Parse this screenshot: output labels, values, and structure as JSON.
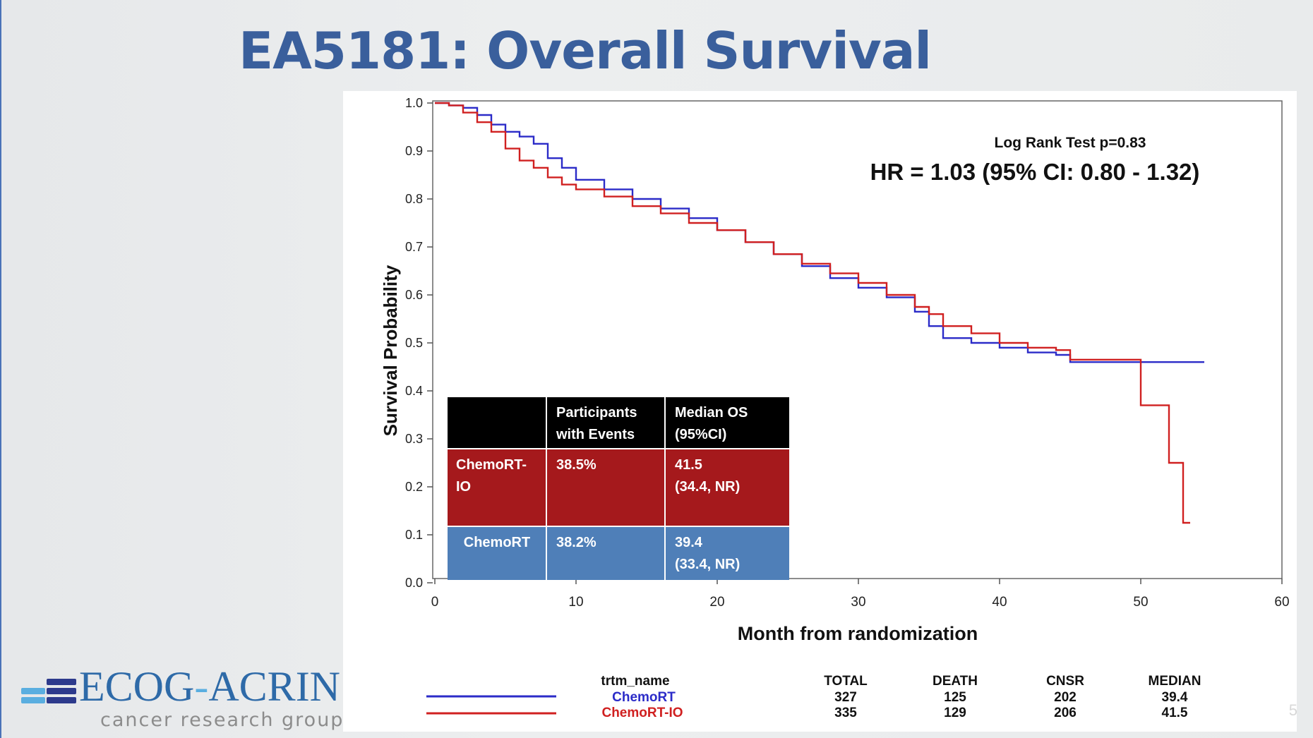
{
  "slide": {
    "title": "EA5181: Overall Survival",
    "page_number": "5"
  },
  "logo": {
    "name_part1": "ECOG",
    "name_dash": "-",
    "name_part2": "ACRIN",
    "subtitle": "cancer research group",
    "colors": {
      "blue": "#2e6aa8",
      "light_blue": "#5aaee0",
      "navy": "#2d3a8c"
    }
  },
  "annotations": {
    "log_rank": "Log Rank Test p=0.83",
    "hr": "HR = 1.03 (95% CI: 0.80 - 1.32)"
  },
  "summary_table": {
    "headers": [
      "",
      "Participants\nwith Events",
      "Median OS\n(95%CI)"
    ],
    "rows": [
      {
        "arm": "ChemoRT-\nIO",
        "events": "38.5%",
        "median": "41.5\n(34.4, NR)",
        "color": "#a5191c"
      },
      {
        "arm": "ChemoRT",
        "events": "38.2%",
        "median": "39.4\n(33.4, NR)",
        "color": "#4f7fb8"
      }
    ],
    "header_color": "#000000"
  },
  "legend_table": {
    "headers": [
      "trtm_name",
      "TOTAL",
      "DEATH",
      "CNSR",
      "MEDIAN"
    ],
    "rows": [
      {
        "name": "ChemoRT",
        "total": "327",
        "death": "125",
        "cnsr": "202",
        "median": "39.4",
        "color": "#2b2bc8"
      },
      {
        "name": "ChemoRT-IO",
        "total": "335",
        "death": "129",
        "cnsr": "206",
        "median": "41.5",
        "color": "#d02020"
      }
    ]
  },
  "chart_data": {
    "type": "line",
    "title": "",
    "xlabel": "Month from randomization",
    "ylabel": "Survival Probability",
    "xlim": [
      0,
      60
    ],
    "ylim": [
      0,
      1.0
    ],
    "xticks": [
      0,
      10,
      20,
      30,
      40,
      50,
      60
    ],
    "yticks": [
      0.0,
      0.1,
      0.2,
      0.3,
      0.4,
      0.5,
      0.6,
      0.7,
      0.8,
      0.9,
      1.0
    ],
    "ytick_labels": [
      "0.0",
      "0.1",
      "0.2",
      "0.3",
      "0.4",
      "0.5",
      "0.6",
      "0.7",
      "0.8",
      "0.9",
      "1.0"
    ],
    "grid": false,
    "step": true,
    "series": [
      {
        "name": "ChemoRT",
        "color": "#2b2bc8",
        "x": [
          0,
          1,
          2,
          3,
          4,
          5,
          6,
          7,
          8,
          9,
          10,
          12,
          14,
          16,
          18,
          20,
          22,
          24,
          26,
          28,
          30,
          32,
          34,
          35,
          36,
          38,
          40,
          42,
          44,
          45,
          46,
          48,
          50,
          52,
          54.5
        ],
        "y": [
          1.0,
          0.995,
          0.99,
          0.975,
          0.955,
          0.94,
          0.93,
          0.915,
          0.885,
          0.865,
          0.84,
          0.82,
          0.8,
          0.78,
          0.76,
          0.735,
          0.71,
          0.685,
          0.66,
          0.635,
          0.615,
          0.595,
          0.565,
          0.535,
          0.51,
          0.5,
          0.49,
          0.48,
          0.475,
          0.46,
          0.46,
          0.46,
          0.46,
          0.46,
          0.46
        ]
      },
      {
        "name": "ChemoRT-IO",
        "color": "#d02020",
        "x": [
          0,
          1,
          2,
          3,
          4,
          5,
          6,
          7,
          8,
          9,
          10,
          12,
          14,
          16,
          18,
          20,
          22,
          24,
          26,
          28,
          30,
          32,
          34,
          35,
          36,
          38,
          40,
          42,
          44,
          45,
          46,
          48,
          50,
          51,
          52,
          53,
          53.5
        ],
        "y": [
          1.0,
          0.995,
          0.98,
          0.96,
          0.94,
          0.905,
          0.88,
          0.865,
          0.845,
          0.83,
          0.82,
          0.805,
          0.785,
          0.77,
          0.75,
          0.735,
          0.71,
          0.685,
          0.665,
          0.645,
          0.625,
          0.6,
          0.575,
          0.56,
          0.535,
          0.52,
          0.5,
          0.49,
          0.485,
          0.465,
          0.465,
          0.465,
          0.37,
          0.37,
          0.25,
          0.125,
          0.125
        ]
      }
    ]
  }
}
